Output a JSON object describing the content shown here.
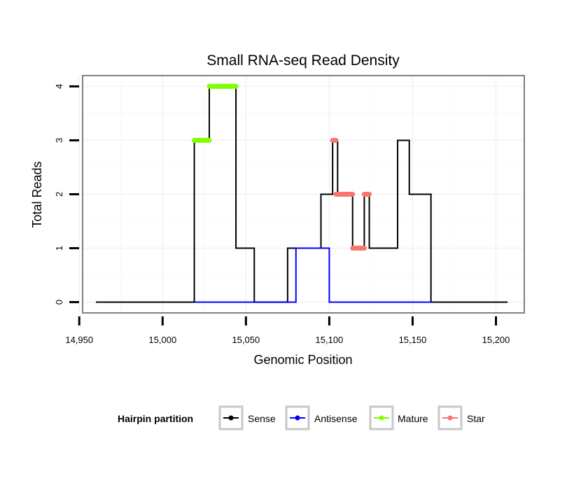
{
  "chart_data": {
    "type": "line",
    "title": "Small RNA-seq Read Density",
    "xlabel": "Genomic Position",
    "ylabel": "Total Reads",
    "xlim": [
      14952,
      15217
    ],
    "ylim": [
      -0.2,
      4.2
    ],
    "x_ticks": [
      14950,
      15000,
      15050,
      15100,
      15150,
      15200
    ],
    "x_tick_labels": [
      "14,950",
      "15,000",
      "15,050",
      "15,100",
      "15,150",
      "15,200"
    ],
    "y_ticks": [
      0,
      1,
      2,
      3,
      4
    ],
    "y_tick_labels": [
      "0",
      "1",
      "2",
      "3",
      "4"
    ],
    "grid": true,
    "legend": {
      "title": "Hairpin partition",
      "placement": "bottom",
      "entries": [
        "Sense",
        "Antisense",
        "Mature",
        "Star"
      ]
    },
    "series": [
      {
        "name": "Sense",
        "color": "#000000",
        "style": "line",
        "points": [
          [
            14960,
            0
          ],
          [
            15019,
            0
          ],
          [
            15019,
            3
          ],
          [
            15028,
            3
          ],
          [
            15028,
            4
          ],
          [
            15044,
            4
          ],
          [
            15044,
            1
          ],
          [
            15055,
            1
          ],
          [
            15055,
            0
          ],
          [
            15075,
            0
          ],
          [
            15075,
            1
          ],
          [
            15095,
            1
          ],
          [
            15095,
            2
          ],
          [
            15102,
            2
          ],
          [
            15102,
            3
          ],
          [
            15105,
            3
          ],
          [
            15105,
            2
          ],
          [
            15114,
            2
          ],
          [
            15114,
            1
          ],
          [
            15121,
            1
          ],
          [
            15121,
            2
          ],
          [
            15124,
            2
          ],
          [
            15124,
            1
          ],
          [
            15141,
            1
          ],
          [
            15141,
            3
          ],
          [
            15148,
            3
          ],
          [
            15148,
            2
          ],
          [
            15161,
            2
          ],
          [
            15161,
            0
          ],
          [
            15207,
            0
          ]
        ]
      },
      {
        "name": "Antisense",
        "color": "#0000ff",
        "style": "line",
        "points": [
          [
            15019,
            0
          ],
          [
            15080,
            0
          ],
          [
            15080,
            1
          ],
          [
            15100,
            1
          ],
          [
            15100,
            0
          ],
          [
            15162,
            0
          ]
        ]
      },
      {
        "name": "Mature",
        "color": "#7fff00",
        "style": "points",
        "segments": [
          {
            "from": 15019,
            "to": 15028,
            "value": 3
          },
          {
            "from": 15028,
            "to": 15044,
            "value": 4
          }
        ]
      },
      {
        "name": "Star",
        "color": "#f8766d",
        "style": "points",
        "segments": [
          {
            "from": 15102,
            "to": 15104,
            "value": 3
          },
          {
            "from": 15104,
            "to": 15114,
            "value": 2
          },
          {
            "from": 15114,
            "to": 15121,
            "value": 1
          },
          {
            "from": 15121,
            "to": 15124,
            "value": 2
          }
        ]
      }
    ]
  }
}
